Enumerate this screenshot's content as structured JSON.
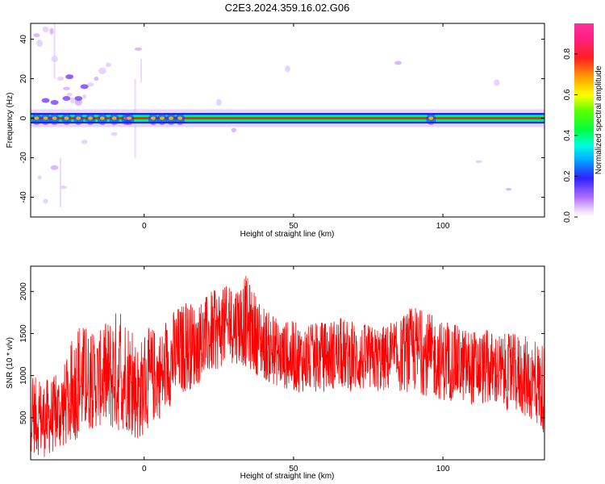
{
  "title": "C2E3.2024.359.16.02.G06",
  "chart_data": [
    {
      "type": "heatmap",
      "xlabel": "Height of straight line (km)",
      "ylabel": "Frequency (Hz)",
      "xlim": [
        -38,
        134
      ],
      "ylim": [
        -50,
        48
      ],
      "xticks": [
        0,
        50,
        100
      ],
      "yticks": [
        -40,
        -20,
        0,
        20,
        40
      ],
      "colorbar": {
        "label": "Normalized spectral amplitude",
        "range": [
          0.0,
          0.95
        ],
        "ticks": [
          0.0,
          0.2,
          0.4,
          0.6,
          0.8
        ],
        "tick_labels": [
          "0.0",
          "0.2",
          "0.4",
          "0.6",
          "0.8"
        ]
      },
      "features": {
        "main_band_frequency_hz": 0,
        "main_band_x_range_km": [
          -38,
          134
        ],
        "main_band_amplitude": 0.9
      }
    },
    {
      "type": "line",
      "xlabel": "Height of straight line (km)",
      "ylabel": "SNR (10 * v/v)",
      "xlim": [
        -38,
        134
      ],
      "ylim": [
        0,
        2300
      ],
      "xticks": [
        0,
        50,
        100
      ],
      "yticks": [
        500,
        1000,
        1500,
        2000
      ],
      "line_color": "#ff0000",
      "envelope": {
        "x": [
          -38,
          -34,
          -30,
          -26,
          -22,
          -18,
          -14,
          -10,
          -6,
          -2,
          2,
          6,
          10,
          14,
          18,
          22,
          26,
          30,
          34,
          38,
          42,
          46,
          50,
          55,
          60,
          65,
          70,
          75,
          80,
          85,
          90,
          95,
          100,
          105,
          110,
          115,
          120,
          125,
          130,
          134
        ],
        "upper": [
          1000,
          950,
          1000,
          1200,
          1700,
          1500,
          1550,
          1800,
          1750,
          1400,
          1600,
          1550,
          1800,
          1900,
          1850,
          2000,
          2050,
          2100,
          2200,
          1950,
          1750,
          1650,
          1650,
          1600,
          1650,
          1700,
          1650,
          1600,
          1600,
          1650,
          1850,
          1750,
          1650,
          1600,
          1550,
          1550,
          1500,
          1500,
          1450,
          1400
        ],
        "lower": [
          100,
          20,
          80,
          150,
          250,
          350,
          400,
          300,
          350,
          200,
          400,
          500,
          700,
          800,
          900,
          1000,
          1100,
          1150,
          1100,
          1000,
          900,
          850,
          800,
          800,
          800,
          850,
          800,
          800,
          800,
          800,
          800,
          750,
          700,
          700,
          650,
          650,
          600,
          550,
          450,
          300
        ]
      }
    }
  ]
}
